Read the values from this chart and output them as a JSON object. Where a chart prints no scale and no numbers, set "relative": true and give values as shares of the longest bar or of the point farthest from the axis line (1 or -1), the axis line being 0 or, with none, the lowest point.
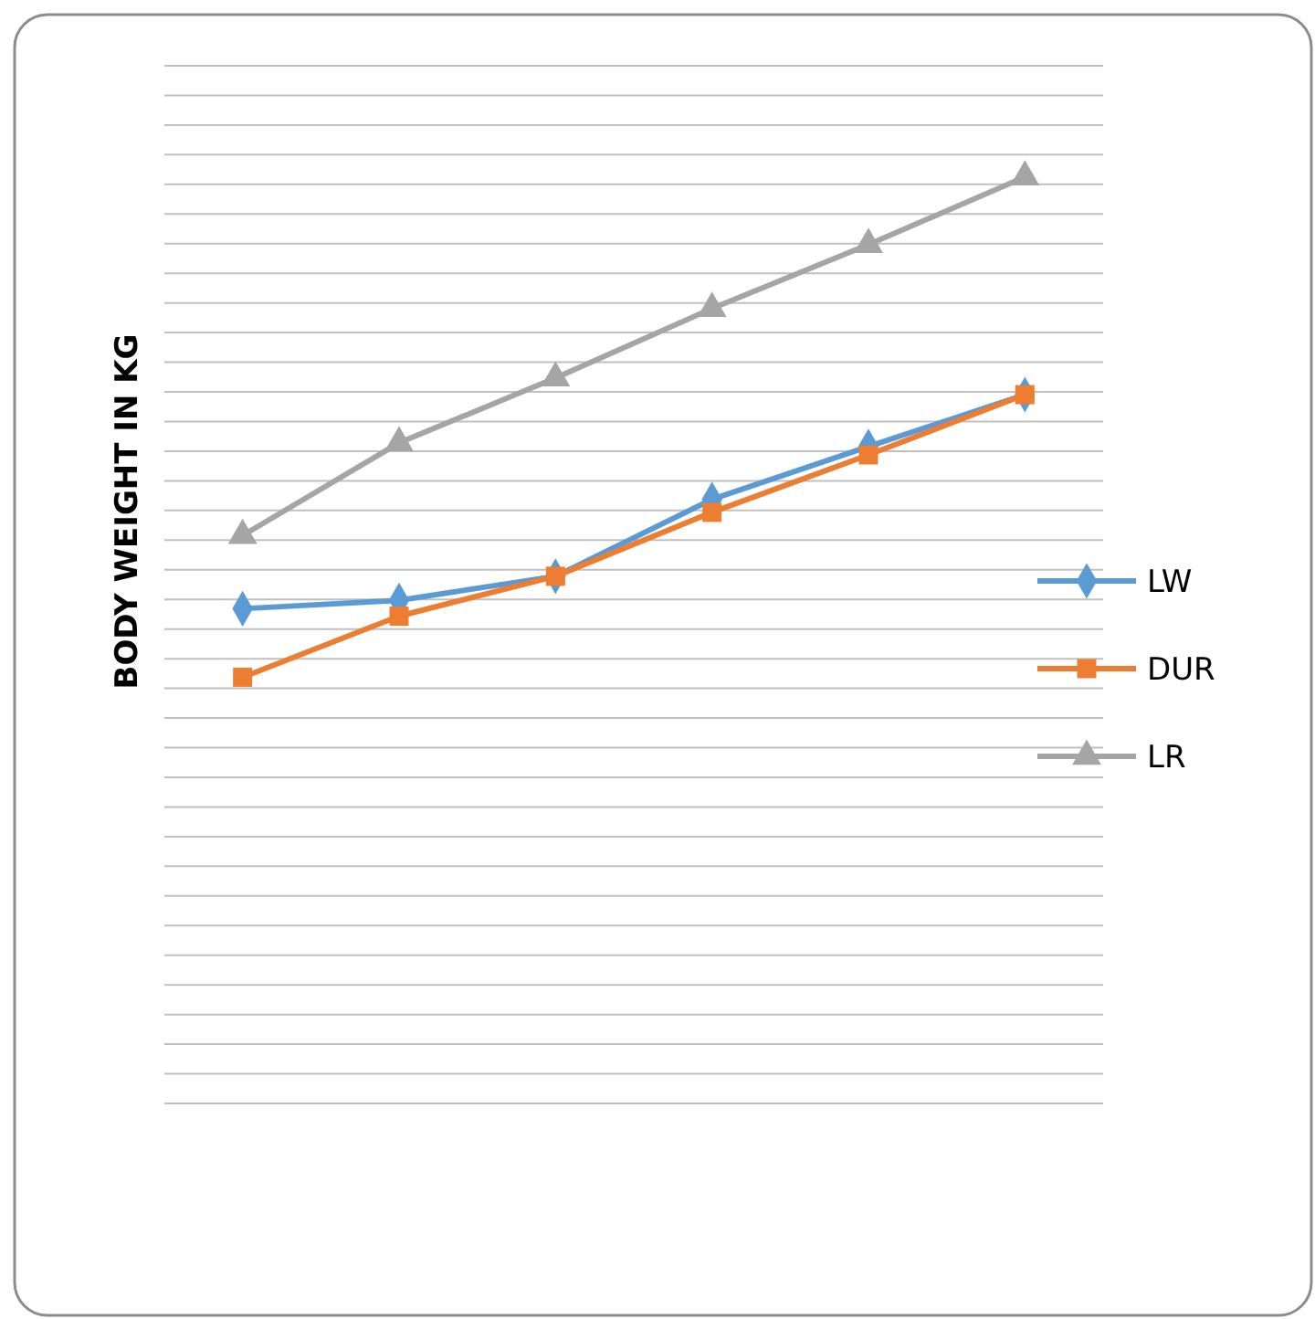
{
  "chart_data": {
    "type": "line",
    "ylabel": "BODY WEIGHT IN KG",
    "relative": true,
    "grid": "y",
    "legend": "right",
    "categories": [
      null,
      null,
      null,
      null,
      null,
      null
    ],
    "series": [
      {
        "name": "LW",
        "color": "#5b9bd5",
        "marker": "diamond",
        "values": [
          0.534,
          0.543,
          0.569,
          0.652,
          0.709,
          0.765
        ]
      },
      {
        "name": "DUR",
        "color": "#ed7d31",
        "marker": "square",
        "values": [
          0.46,
          0.526,
          0.569,
          0.638,
          0.7,
          0.765
        ]
      },
      {
        "name": "LR",
        "color": "#a5a5a5",
        "marker": "triangle",
        "values": [
          0.613,
          0.713,
          0.783,
          0.858,
          0.927,
          1
        ]
      }
    ]
  }
}
